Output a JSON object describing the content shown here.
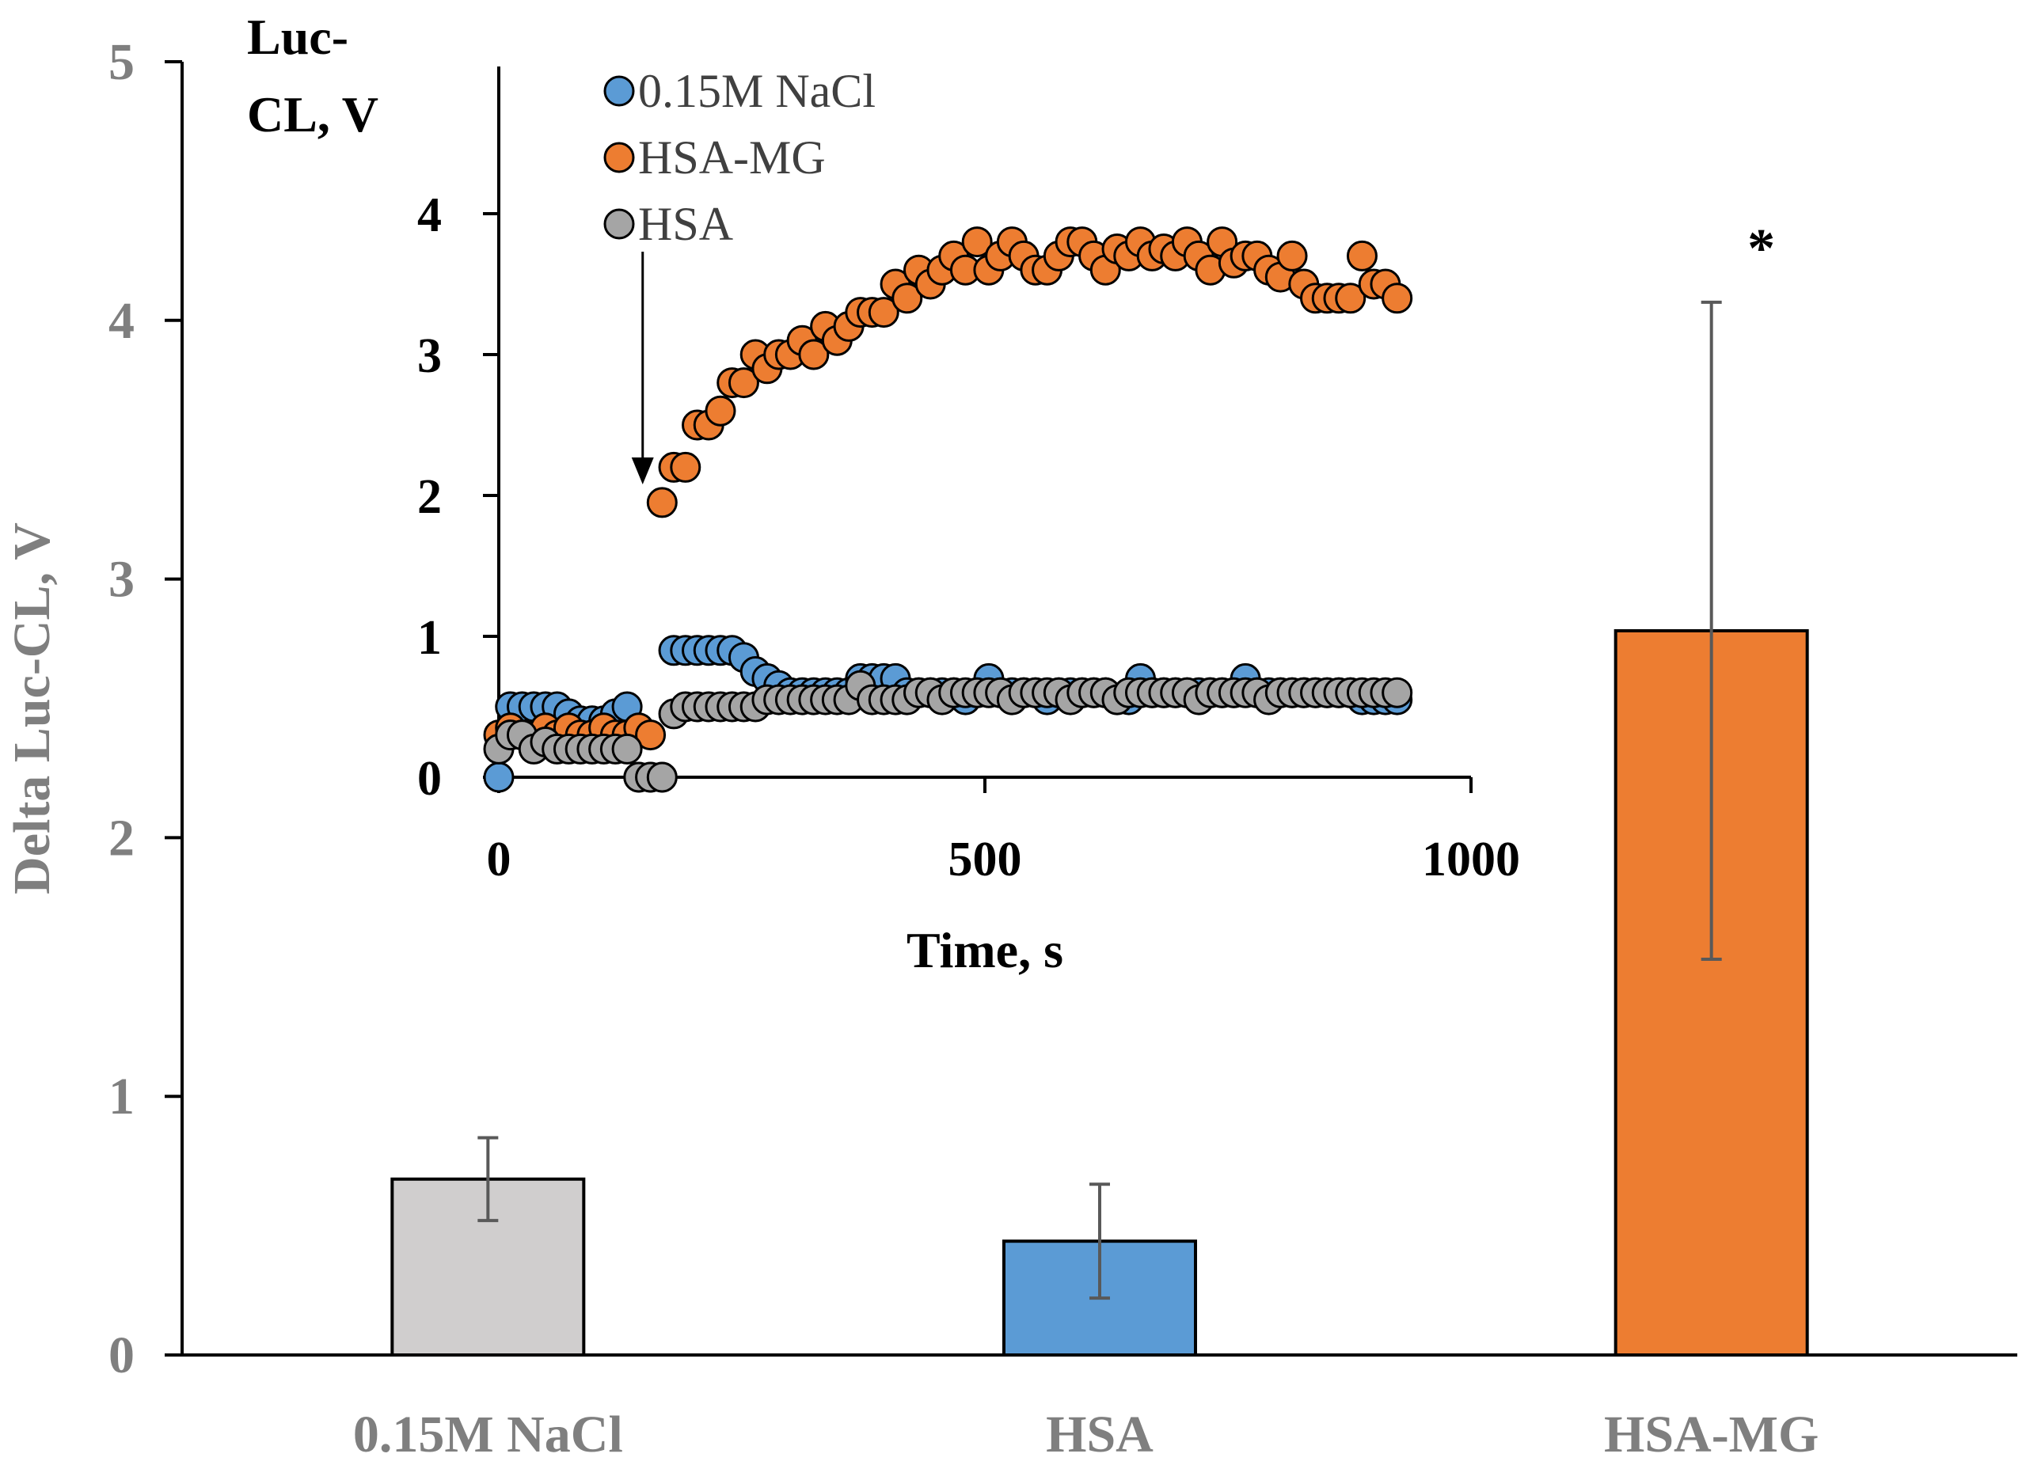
{
  "chart_data": [
    {
      "type": "bar",
      "ylabel": "Delta Luc-CL, V",
      "ylim": [
        0,
        5
      ],
      "yticks": [
        0,
        1,
        2,
        3,
        4,
        5
      ],
      "categories": [
        "0.15M NaCl",
        "HSA",
        "HSA-MG"
      ],
      "values": [
        0.68,
        0.44,
        2.8
      ],
      "errors": [
        0.16,
        0.22,
        1.27
      ],
      "colors": [
        "#d0cece",
        "#5b9bd5",
        "#ed7d31"
      ],
      "annotations": [
        {
          "category": "HSA-MG",
          "text": "*"
        }
      ]
    },
    {
      "type": "scatter",
      "xlabel": "Time, s",
      "ylabel_lines": [
        "Luc-",
        "CL, V"
      ],
      "xlim": [
        0,
        1000
      ],
      "ylim": [
        0,
        4.5
      ],
      "xticks": [
        0,
        500,
        1000
      ],
      "yticks": [
        0,
        1,
        2,
        3,
        4
      ],
      "legend_position": "top-left",
      "arrow_x": 148,
      "series": [
        {
          "name": "0.15M NaCl",
          "color": "#5b9bd5",
          "x": [
            0,
            12,
            24,
            36,
            48,
            60,
            72,
            84,
            96,
            108,
            120,
            132,
            144,
            156,
            168,
            180,
            192,
            204,
            216,
            228,
            240,
            252,
            264,
            276,
            288,
            300,
            312,
            324,
            336,
            348,
            360,
            372,
            384,
            396,
            408,
            420,
            432,
            444,
            456,
            468,
            480,
            492,
            504,
            516,
            528,
            540,
            552,
            564,
            576,
            588,
            600,
            612,
            624,
            636,
            648,
            660,
            672,
            684,
            696,
            708,
            720,
            732,
            744,
            756,
            768,
            780,
            792,
            804,
            816,
            828,
            840,
            852,
            864,
            876,
            888,
            900,
            912,
            924
          ],
          "y": [
            0.0,
            0.5,
            0.5,
            0.5,
            0.5,
            0.5,
            0.45,
            0.4,
            0.4,
            0.4,
            0.45,
            0.5,
            0.0,
            0.0,
            0.0,
            0.9,
            0.9,
            0.9,
            0.9,
            0.9,
            0.9,
            0.85,
            0.75,
            0.7,
            0.65,
            0.6,
            0.6,
            0.6,
            0.6,
            0.6,
            0.6,
            0.7,
            0.7,
            0.7,
            0.7,
            0.6,
            0.6,
            0.6,
            0.6,
            0.6,
            0.55,
            0.6,
            0.7,
            0.6,
            0.6,
            0.6,
            0.6,
            0.55,
            0.6,
            0.6,
            0.6,
            0.6,
            0.6,
            0.55,
            0.55,
            0.7,
            0.6,
            0.6,
            0.6,
            0.6,
            0.6,
            0.6,
            0.6,
            0.6,
            0.7,
            0.6,
            0.6,
            0.6,
            0.6,
            0.6,
            0.6,
            0.6,
            0.6,
            0.6,
            0.55,
            0.55,
            0.55,
            0.55
          ]
        },
        {
          "name": "HSA-MG",
          "color": "#ed7d31",
          "x": [
            0,
            12,
            24,
            36,
            48,
            60,
            72,
            84,
            96,
            108,
            120,
            132,
            144,
            156,
            168,
            180,
            192,
            204,
            216,
            228,
            240,
            252,
            264,
            276,
            288,
            300,
            312,
            324,
            336,
            348,
            360,
            372,
            384,
            396,
            408,
            420,
            432,
            444,
            456,
            468,
            480,
            492,
            504,
            516,
            528,
            540,
            552,
            564,
            576,
            588,
            600,
            612,
            624,
            636,
            648,
            660,
            672,
            684,
            696,
            708,
            720,
            732,
            744,
            756,
            768,
            780,
            792,
            804,
            816,
            828,
            840,
            852,
            864,
            876,
            888,
            900,
            912,
            924
          ],
          "y": [
            0.3,
            0.35,
            0.3,
            0.3,
            0.35,
            0.3,
            0.35,
            0.3,
            0.3,
            0.35,
            0.3,
            0.3,
            0.35,
            0.3,
            1.95,
            2.2,
            2.2,
            2.5,
            2.5,
            2.6,
            2.8,
            2.8,
            3.0,
            2.9,
            3.0,
            3.0,
            3.1,
            3.0,
            3.2,
            3.1,
            3.2,
            3.3,
            3.3,
            3.3,
            3.5,
            3.4,
            3.6,
            3.5,
            3.6,
            3.7,
            3.6,
            3.8,
            3.6,
            3.7,
            3.8,
            3.7,
            3.6,
            3.6,
            3.7,
            3.8,
            3.8,
            3.7,
            3.6,
            3.75,
            3.7,
            3.8,
            3.7,
            3.75,
            3.7,
            3.8,
            3.7,
            3.6,
            3.8,
            3.65,
            3.7,
            3.7,
            3.6,
            3.55,
            3.7,
            3.5,
            3.4,
            3.4,
            3.4,
            3.4,
            3.7,
            3.5,
            3.5,
            3.4
          ]
        },
        {
          "name": "HSA",
          "color": "#a5a5a5",
          "x": [
            0,
            12,
            24,
            36,
            48,
            60,
            72,
            84,
            96,
            108,
            120,
            132,
            144,
            156,
            168,
            180,
            192,
            204,
            216,
            228,
            240,
            252,
            264,
            276,
            288,
            300,
            312,
            324,
            336,
            348,
            360,
            372,
            384,
            396,
            408,
            420,
            432,
            444,
            456,
            468,
            480,
            492,
            504,
            516,
            528,
            540,
            552,
            564,
            576,
            588,
            600,
            612,
            624,
            636,
            648,
            660,
            672,
            684,
            696,
            708,
            720,
            732,
            744,
            756,
            768,
            780,
            792,
            804,
            816,
            828,
            840,
            852,
            864,
            876,
            888,
            900,
            912,
            924
          ],
          "y": [
            0.2,
            0.3,
            0.3,
            0.2,
            0.25,
            0.2,
            0.2,
            0.2,
            0.2,
            0.2,
            0.2,
            0.2,
            0.0,
            0.0,
            0.0,
            0.45,
            0.5,
            0.5,
            0.5,
            0.5,
            0.5,
            0.5,
            0.5,
            0.55,
            0.55,
            0.55,
            0.55,
            0.55,
            0.55,
            0.55,
            0.55,
            0.65,
            0.55,
            0.55,
            0.55,
            0.55,
            0.6,
            0.6,
            0.55,
            0.6,
            0.6,
            0.6,
            0.6,
            0.6,
            0.55,
            0.6,
            0.6,
            0.6,
            0.6,
            0.55,
            0.6,
            0.6,
            0.6,
            0.55,
            0.6,
            0.6,
            0.6,
            0.6,
            0.6,
            0.6,
            0.55,
            0.6,
            0.6,
            0.6,
            0.6,
            0.6,
            0.55,
            0.6,
            0.6,
            0.6,
            0.6,
            0.6,
            0.6,
            0.6,
            0.6,
            0.6,
            0.6,
            0.6
          ]
        }
      ]
    }
  ]
}
